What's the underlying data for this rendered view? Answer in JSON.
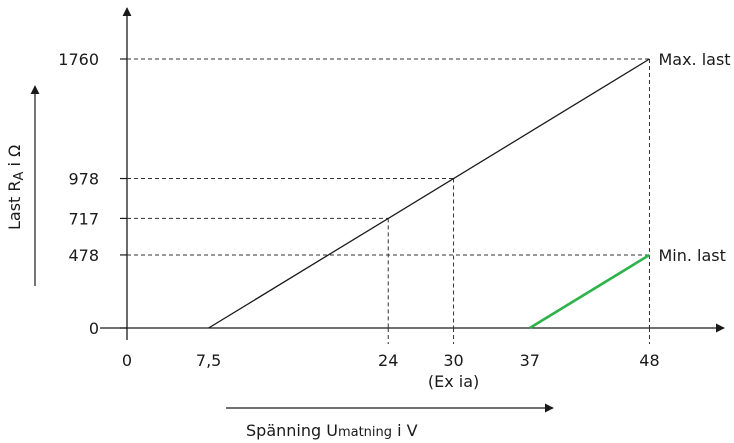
{
  "chart_data": {
    "type": "line",
    "xlabel": {
      "prefix": "Spänning U",
      "subscript": "matning",
      "suffix": " i V"
    },
    "ylabel": {
      "prefix": "Last R",
      "subscript": "A",
      "suffix": " i Ω"
    },
    "x_ticks": [
      {
        "value": 0,
        "label": "0"
      },
      {
        "value": 7.5,
        "label": "7,5"
      },
      {
        "value": 24,
        "label": "24"
      },
      {
        "value": 30,
        "label": "30"
      },
      {
        "value": 37,
        "label": "37"
      },
      {
        "value": 48,
        "label": "48"
      }
    ],
    "x_note": {
      "x": 30,
      "text": "(Ex ia)"
    },
    "y_ticks": [
      {
        "value": 0,
        "label": "0"
      },
      {
        "value": 478,
        "label": "478"
      },
      {
        "value": 717,
        "label": "717"
      },
      {
        "value": 978,
        "label": "978"
      },
      {
        "value": 1760,
        "label": "1760"
      }
    ],
    "series": [
      {
        "name": "Max. last",
        "color": "#1a1a1a",
        "points": [
          [
            7.5,
            0
          ],
          [
            48,
            1760
          ]
        ]
      },
      {
        "name": "Min. last",
        "color": "#2db34a",
        "points": [
          [
            37,
            0
          ],
          [
            48,
            478
          ]
        ]
      }
    ],
    "guides": [
      {
        "x": 24,
        "y": 717
      },
      {
        "x": 30,
        "y": 978
      },
      {
        "x": 48,
        "y": 478
      },
      {
        "x": 48,
        "y": 1760
      }
    ],
    "grid": false,
    "legend": "inline-right"
  }
}
